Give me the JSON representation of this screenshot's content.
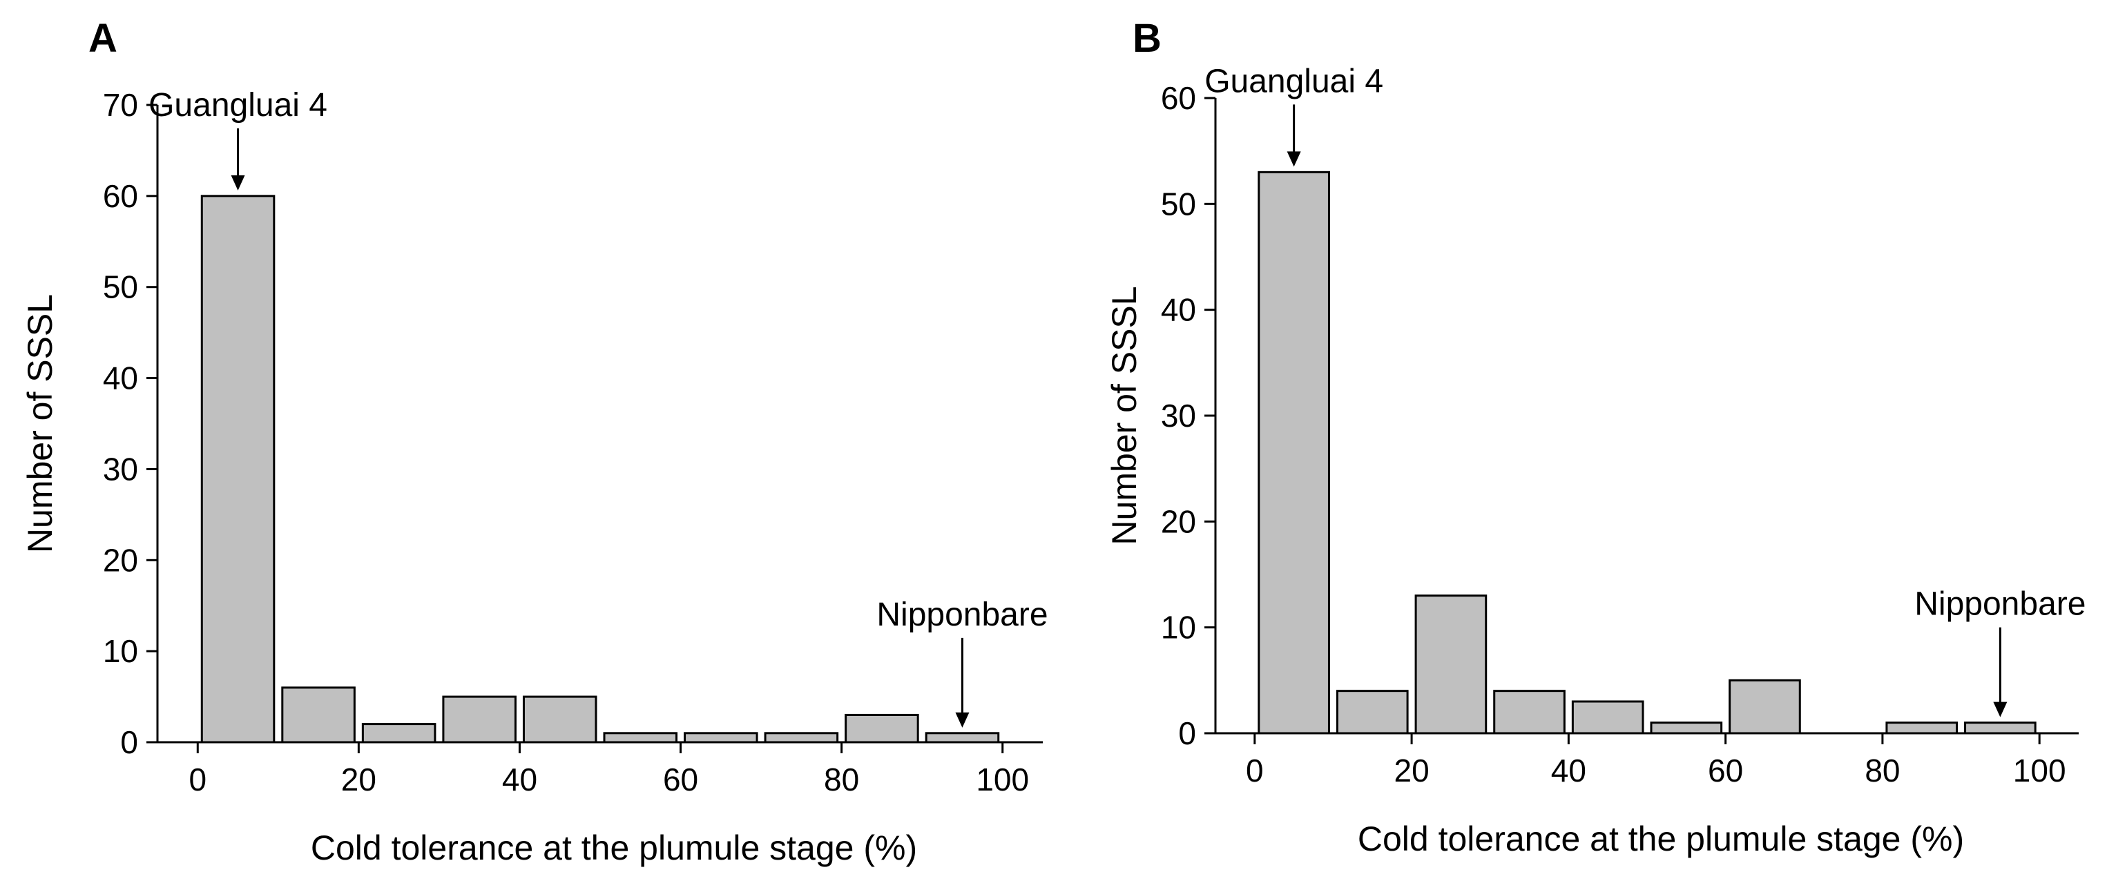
{
  "chart_data": [
    {
      "type": "bar",
      "panel_label": "A",
      "bins": [
        [
          0,
          10
        ],
        [
          10,
          20
        ],
        [
          20,
          30
        ],
        [
          30,
          40
        ],
        [
          40,
          50
        ],
        [
          50,
          60
        ],
        [
          60,
          70
        ],
        [
          70,
          80
        ],
        [
          80,
          90
        ],
        [
          90,
          100
        ]
      ],
      "values": [
        60,
        6,
        2,
        5,
        5,
        1,
        1,
        1,
        3,
        1
      ],
      "xlabel": "Cold tolerance at the plumule stage (%)",
      "ylabel": "Number of SSSL",
      "xlim": [
        -5,
        105
      ],
      "ylim": [
        0,
        70
      ],
      "xticks": [
        0,
        20,
        40,
        60,
        80,
        100
      ],
      "yticks": [
        0,
        10,
        20,
        30,
        40,
        50,
        60,
        70
      ],
      "bar_color": "#c0c0c0",
      "grid": false,
      "annotations": [
        {
          "label": "Guangluai 4",
          "x": 5,
          "y": 60
        },
        {
          "label": "Nipponbare",
          "x": 95,
          "y": 1
        }
      ]
    },
    {
      "type": "bar",
      "panel_label": "B",
      "bins": [
        [
          0,
          10
        ],
        [
          10,
          20
        ],
        [
          20,
          30
        ],
        [
          30,
          40
        ],
        [
          40,
          50
        ],
        [
          50,
          60
        ],
        [
          60,
          70
        ],
        [
          70,
          80
        ],
        [
          80,
          90
        ],
        [
          90,
          100
        ]
      ],
      "values": [
        53,
        4,
        13,
        4,
        3,
        1,
        5,
        0,
        1,
        1
      ],
      "xlabel": "Cold tolerance at the plumule stage (%)",
      "ylabel": "Number of SSSL",
      "xlim": [
        -5,
        105
      ],
      "ylim": [
        0,
        60
      ],
      "xticks": [
        0,
        20,
        40,
        60,
        80,
        100
      ],
      "yticks": [
        0,
        10,
        20,
        30,
        40,
        50,
        60
      ],
      "bar_color": "#c0c0c0",
      "grid": false,
      "annotations": [
        {
          "label": "Guangluai 4",
          "x": 5,
          "y": 53
        },
        {
          "label": "Nipponbare",
          "x": 95,
          "y": 1
        }
      ]
    }
  ]
}
